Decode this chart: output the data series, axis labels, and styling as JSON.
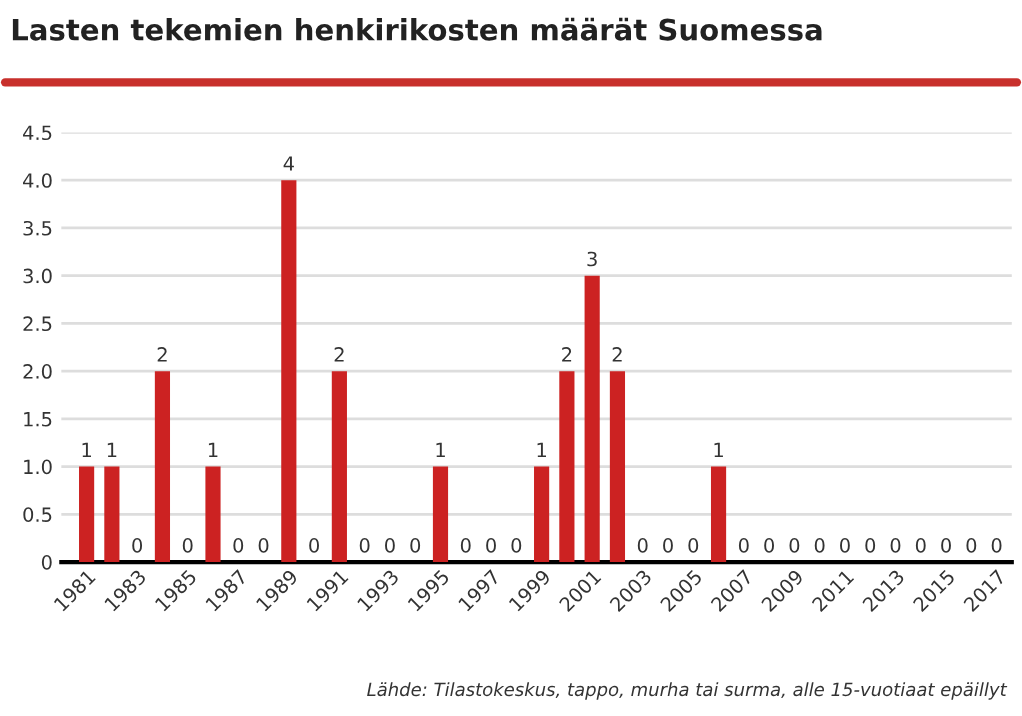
{
  "chart_data": {
    "type": "bar",
    "title": "Lasten tekemien henkirikosten määrät Suomessa",
    "categories": [
      "1981",
      null,
      "1983",
      null,
      "1985",
      null,
      "1987",
      null,
      "1989",
      null,
      "1991",
      null,
      "1993",
      null,
      "1995",
      null,
      "1997",
      null,
      "1999",
      null,
      "2001",
      null,
      "2003",
      null,
      "2005",
      null,
      "2007",
      null,
      "2009",
      null,
      "2011",
      null,
      "2013",
      null,
      "2015",
      null,
      "2017"
    ],
    "values": [
      1,
      1,
      0,
      2,
      0,
      1,
      0,
      0,
      4,
      0,
      2,
      0,
      0,
      0,
      1,
      0,
      0,
      0,
      1,
      2,
      3,
      2,
      0,
      0,
      0,
      1,
      0,
      0,
      0,
      0,
      0,
      0,
      0,
      0,
      0,
      0,
      0
    ],
    "color": "#cc2222",
    "ylim": [
      0,
      4.5
    ],
    "yticks": [
      0,
      0.5,
      {
        "value": 1,
        "label": "1.0"
      },
      1.5,
      {
        "value": 2,
        "label": "2.0"
      },
      2.5,
      {
        "value": 3,
        "label": "3.0"
      },
      3.5,
      {
        "value": 4,
        "label": "4.0"
      },
      4.5
    ],
    "grid": "y",
    "data_labels": true,
    "annotations": [
      "Lähde: Tilastokeskus, tappo, murha tai surma, alle 15-vuotiaat epäillyt"
    ]
  }
}
